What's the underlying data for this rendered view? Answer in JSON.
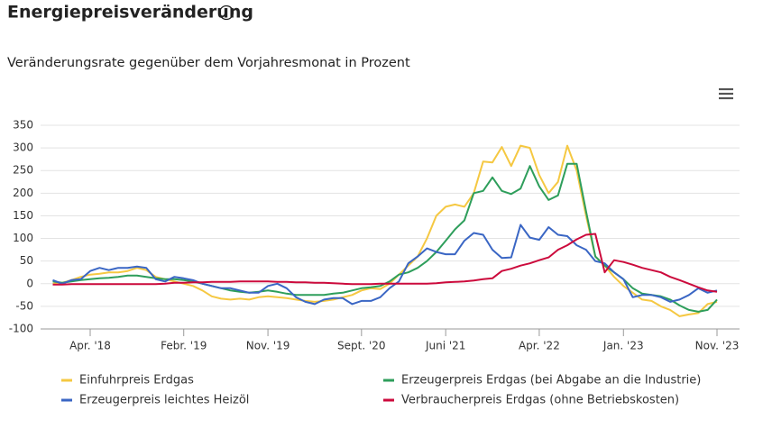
{
  "chart_data": {
    "type": "line",
    "title": "Energiepreisveränderung",
    "subtitle": "Veränderungsrate gegenüber dem Vorjahresmonat in Prozent",
    "categories": [
      null,
      null,
      null,
      null,
      "Apr. '18",
      null,
      null,
      null,
      null,
      null,
      null,
      null,
      null,
      null,
      "Febr. '19",
      null,
      null,
      null,
      null,
      null,
      null,
      null,
      null,
      "Nov. '19",
      null,
      null,
      null,
      null,
      null,
      null,
      null,
      null,
      null,
      "Sept. '20",
      null,
      null,
      null,
      null,
      null,
      null,
      null,
      null,
      "Juni '21",
      null,
      null,
      null,
      null,
      null,
      null,
      null,
      null,
      null,
      "Apr. '22",
      null,
      null,
      null,
      null,
      null,
      null,
      null,
      null,
      "Jan. '23",
      null,
      null,
      null,
      null,
      null,
      null,
      null,
      null,
      null,
      "Nov. '23"
    ],
    "series": [
      {
        "name": "Einfuhrpreis Erdgas",
        "color": "#f5c842",
        "values": [
          0,
          2,
          8,
          15,
          20,
          22,
          25,
          25,
          28,
          35,
          30,
          15,
          10,
          5,
          0,
          -5,
          -15,
          -28,
          -33,
          -35,
          -33,
          -35,
          -30,
          -28,
          -30,
          -32,
          -35,
          -38,
          -40,
          -38,
          -35,
          -30,
          -25,
          -15,
          -10,
          -12,
          0,
          20,
          40,
          60,
          100,
          150,
          170,
          175,
          170,
          200,
          270,
          268,
          302,
          260,
          305,
          300,
          240,
          200,
          225,
          305,
          250,
          150,
          60,
          40,
          15,
          -5,
          -20,
          -35,
          -38,
          -50,
          -58,
          -72,
          -68,
          -65,
          -45,
          -40
        ]
      },
      {
        "name": "Erzeugerpreis Erdgas (bei Abgabe an die Industrie)",
        "color": "#2e9e5b",
        "values": [
          5,
          2,
          5,
          8,
          10,
          12,
          13,
          15,
          18,
          18,
          15,
          12,
          10,
          10,
          8,
          5,
          0,
          -5,
          -10,
          -15,
          -18,
          -20,
          -18,
          -15,
          -18,
          -22,
          -25,
          -25,
          -25,
          -25,
          -22,
          -20,
          -15,
          -10,
          -8,
          -5,
          5,
          20,
          25,
          35,
          50,
          70,
          95,
          120,
          140,
          200,
          205,
          235,
          205,
          198,
          210,
          260,
          215,
          185,
          195,
          265,
          265,
          160,
          60,
          40,
          25,
          10,
          -10,
          -22,
          -25,
          -28,
          -35,
          -48,
          -58,
          -62,
          -58,
          -35
        ]
      },
      {
        "name": "Erzeugerpreis leichtes Heizöl",
        "color": "#3a66c4",
        "values": [
          8,
          0,
          8,
          10,
          28,
          35,
          30,
          35,
          35,
          38,
          35,
          10,
          5,
          15,
          12,
          8,
          0,
          -5,
          -10,
          -10,
          -15,
          -20,
          -20,
          -5,
          0,
          -10,
          -30,
          -40,
          -45,
          -35,
          -32,
          -32,
          -45,
          -38,
          -38,
          -30,
          -10,
          5,
          45,
          60,
          78,
          70,
          65,
          65,
          95,
          112,
          108,
          75,
          57,
          58,
          130,
          102,
          97,
          125,
          108,
          105,
          85,
          75,
          50,
          45,
          25,
          10,
          -30,
          -25,
          -25,
          -30,
          -40,
          -35,
          -25,
          -10,
          -20,
          -15
        ]
      },
      {
        "name": "Verbraucherpreis Erdgas (ohne Betriebskosten)",
        "color": "#cc0a3c",
        "values": [
          -2,
          -2,
          -1,
          -1,
          -1,
          -1,
          -1,
          -1,
          -1,
          -1,
          -1,
          -1,
          0,
          2,
          2,
          3,
          3,
          4,
          4,
          4,
          5,
          5,
          5,
          5,
          4,
          4,
          3,
          3,
          2,
          2,
          1,
          0,
          -1,
          -1,
          -1,
          0,
          0,
          0,
          0,
          0,
          0,
          1,
          3,
          4,
          5,
          7,
          10,
          12,
          28,
          33,
          40,
          45,
          52,
          58,
          75,
          85,
          98,
          108,
          110,
          25,
          52,
          48,
          42,
          35,
          30,
          25,
          15,
          8,
          0,
          -8,
          -15,
          -18
        ]
      }
    ],
    "ylim": [
      -100,
      350
    ],
    "yticks": [
      -100,
      -50,
      0,
      50,
      100,
      150,
      200,
      250,
      300,
      350
    ],
    "grid": true
  }
}
